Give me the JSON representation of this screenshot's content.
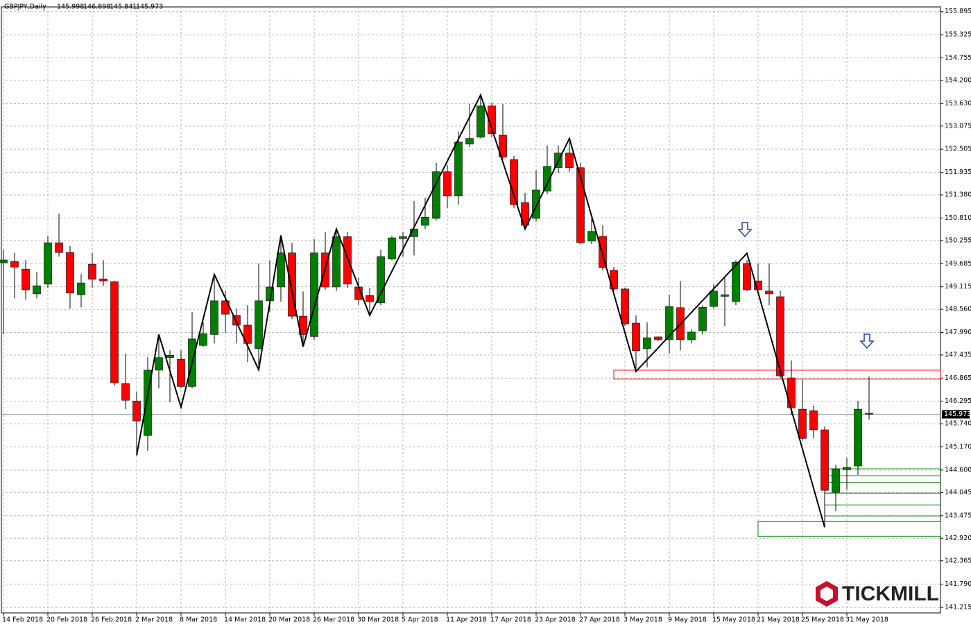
{
  "chart_data": {
    "type": "candlestick",
    "title": "GBPJPY,Daily",
    "watermark": "TICKMILL",
    "categories": [
      "14 Feb 2018",
      null,
      null,
      null,
      "20 Feb 2018",
      null,
      null,
      null,
      "26 Feb 2018",
      null,
      null,
      null,
      "2 Mar 2018",
      null,
      null,
      null,
      "8 Mar 2018",
      null,
      null,
      null,
      "14 Mar 2018",
      null,
      null,
      null,
      "20 Mar 2018",
      null,
      null,
      null,
      "26 Mar 2018",
      null,
      null,
      null,
      "30 Mar 2018",
      null,
      null,
      null,
      "5 Apr 2018",
      null,
      null,
      null,
      "11 Apr 2018",
      null,
      null,
      null,
      "17 Apr 2018",
      null,
      null,
      null,
      "23 Apr 2018",
      null,
      null,
      null,
      "27 Apr 2018",
      null,
      null,
      null,
      "3 May 2018",
      null,
      null,
      null,
      "9 May 2018",
      null,
      null,
      null,
      "15 May 2018",
      null,
      null,
      null,
      "21 May 2018",
      null,
      null,
      null,
      "25 May 2018",
      null,
      null,
      null,
      "31 May 2018",
      null,
      null
    ],
    "open": [
      149.707,
      149.74,
      149.55,
      148.94,
      149.18,
      150.2,
      149.96,
      148.92,
      149.67,
      149.31,
      149.24,
      146.73,
      146.3,
      145.45,
      147.06,
      147.37,
      147.33,
      146.66,
      147.67,
      147.94,
      148.77,
      148.41,
      148.17,
      147.59,
      148.77,
      149.11,
      149.95,
      148.39,
      147.89,
      149.95,
      149.11,
      150.35,
      149.11,
      148.9,
      148.72,
      149.8,
      150.3,
      150.35,
      150.63,
      150.8,
      151.95,
      151.35,
      152.63,
      152.8,
      153.57,
      152.85,
      152.25,
      151.19,
      150.8,
      151.47,
      152.05,
      152.41,
      152.05,
      150.24,
      150.36,
      149.52,
      149.06,
      148.22,
      147.59,
      147.88,
      147.81,
      148.6,
      147.81,
      148.03,
      148.63,
      148.88,
      148.75,
      149.69,
      149.26,
      149.01,
      148.87,
      146.87,
      146.1,
      146.06,
      145.59,
      144.05,
      144.61,
      144.7,
      145.998
    ],
    "high": [
      150.03,
      149.95,
      149.77,
      149.48,
      150.37,
      150.92,
      150.12,
      149.43,
      149.95,
      149.77,
      149.26,
      147.47,
      146.53,
      147.38,
      147.94,
      147.55,
      147.55,
      148.49,
      148.24,
      149.35,
      149.01,
      148.58,
      148.66,
      149.69,
      149.77,
      150.29,
      150.2,
      149.0,
      150.29,
      150.46,
      150.54,
      150.46,
      149.35,
      149.09,
      150.03,
      150.37,
      150.46,
      151.23,
      151.31,
      152.17,
      152.12,
      152.94,
      153.62,
      153.79,
      153.66,
      153.62,
      152.34,
      151.43,
      151.99,
      152.6,
      152.6,
      152.68,
      152.17,
      150.8,
      150.63,
      149.6,
      149.09,
      148.41,
      148.24,
      147.89,
      148.92,
      149.26,
      148.07,
      148.66,
      149.18,
      149.35,
      149.77,
      149.77,
      149.69,
      149.69,
      149.01,
      147.3,
      146.82,
      146.19,
      145.67,
      144.73,
      144.9,
      146.31,
      146.898
    ],
    "low": [
      147.946,
      148.83,
      148.8,
      148.83,
      149.09,
      149.86,
      148.58,
      148.61,
      149.09,
      149.14,
      146.68,
      146.1,
      144.96,
      145.07,
      146.61,
      146.27,
      146.61,
      146.61,
      147.64,
      147.72,
      147.98,
      147.72,
      147.26,
      147.07,
      148.49,
      148.75,
      148.32,
      147.64,
      147.81,
      149.04,
      149.01,
      149.09,
      148.66,
      148.41,
      148.66,
      149.77,
      149.86,
      149.89,
      150.54,
      150.75,
      151.06,
      151.14,
      152.56,
      152.77,
      152.8,
      152.25,
      151.06,
      150.54,
      150.72,
      151.4,
      151.91,
      151.95,
      150.17,
      150.17,
      149.52,
      149.01,
      148.15,
      147.04,
      147.13,
      147.78,
      147.47,
      147.55,
      147.72,
      147.94,
      148.58,
      148.15,
      148.66,
      149.01,
      149.01,
      148.66,
      146.87,
      145.96,
      145.33,
      145.38,
      143.19,
      143.59,
      144.12,
      144.48,
      145.841
    ],
    "close": [
      149.775,
      149.6,
      149.04,
      149.14,
      150.2,
      149.96,
      148.96,
      149.21,
      149.3,
      149.26,
      146.75,
      146.32,
      145.81,
      147.06,
      147.37,
      147.43,
      146.66,
      147.83,
      147.96,
      148.77,
      148.44,
      148.17,
      147.72,
      148.77,
      149.11,
      149.95,
      148.39,
      147.94,
      149.95,
      149.11,
      150.35,
      149.18,
      148.8,
      148.75,
      149.86,
      150.32,
      150.35,
      150.54,
      150.83,
      151.95,
      151.35,
      152.68,
      152.77,
      153.57,
      152.89,
      152.31,
      151.14,
      150.63,
      151.5,
      152.08,
      152.41,
      152.05,
      150.2,
      150.48,
      149.59,
      149.06,
      148.2,
      147.54,
      147.86,
      147.81,
      148.63,
      147.81,
      148.0,
      148.61,
      149.01,
      148.92,
      149.72,
      149.04,
      149.04,
      148.94,
      146.92,
      146.13,
      145.38,
      145.59,
      144.1,
      144.63,
      144.66,
      146.1,
      145.973
    ],
    "up_color": "#008000",
    "down_color": "#ff0000",
    "zigzag": {
      "color": "#000000",
      "x": [
        12,
        14,
        16,
        19,
        23,
        25,
        27,
        30,
        33,
        43,
        47,
        51,
        57,
        67,
        74
      ],
      "values": [
        144.96,
        147.94,
        146.15,
        149.42,
        147.07,
        150.38,
        147.64,
        150.54,
        148.41,
        153.84,
        150.54,
        152.77,
        147.03,
        149.94,
        143.19
      ]
    },
    "zones": [
      {
        "from": 55,
        "low": 146.84,
        "high": 147.06,
        "color": "#ff0000"
      },
      {
        "from": 68,
        "low": 142.97,
        "high": 143.33,
        "color": "#008000"
      }
    ],
    "levels": {
      "from": 74,
      "color": "#008000",
      "values": [
        144.63,
        144.46,
        144.3,
        144.03,
        143.74,
        143.47
      ]
    },
    "ylim": [
      141.08,
      156.01
    ],
    "yticks": [
      {
        "value": 141.215,
        "label": "141.215"
      },
      {
        "value": 141.79,
        "label": "141.790"
      },
      {
        "value": 142.365,
        "label": "142.365"
      },
      {
        "value": 142.92,
        "label": "142.920"
      },
      {
        "value": 143.475,
        "label": "143.475"
      },
      {
        "value": 144.045,
        "label": "144.045"
      },
      {
        "value": 144.6,
        "label": "144.600"
      },
      {
        "value": 145.17,
        "label": "145.170"
      },
      {
        "value": 145.74,
        "label": "145.740"
      },
      {
        "value": 146.295,
        "label": "146.295"
      },
      {
        "value": 146.865,
        "label": "146.865"
      },
      {
        "value": 147.435,
        "label": "147.435"
      },
      {
        "value": 147.99,
        "label": "147.990"
      },
      {
        "value": 148.56,
        "label": "148.560"
      },
      {
        "value": 149.115,
        "label": "149.115"
      },
      {
        "value": 149.685,
        "label": "149.685"
      },
      {
        "value": 150.255,
        "label": "150.255"
      },
      {
        "value": 150.81,
        "label": "150.810"
      },
      {
        "value": 151.38,
        "label": "151.380"
      },
      {
        "value": 151.935,
        "label": "151.935"
      },
      {
        "value": 152.505,
        "label": "152.505"
      },
      {
        "value": 153.075,
        "label": "153.075"
      },
      {
        "value": 153.63,
        "label": "153.630"
      },
      {
        "value": 154.2,
        "label": "154.200"
      },
      {
        "value": 154.755,
        "label": "154.755"
      },
      {
        "value": 155.325,
        "label": "155.325"
      },
      {
        "value": 155.895,
        "label": "155.895"
      }
    ],
    "grid": true
  }
}
